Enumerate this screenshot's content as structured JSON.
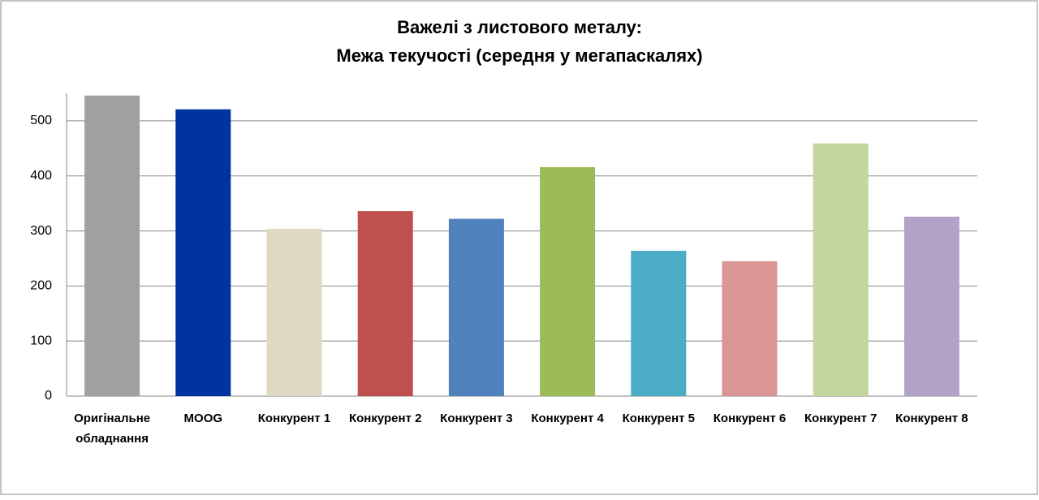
{
  "chart_data": {
    "type": "bar",
    "title": "Важелі з листового металу:",
    "subtitle": "Межа текучості (середня у мегапаскалях)",
    "categories": [
      "Оригінальне обладнання",
      "MOOG",
      "Конкурент 1",
      "Конкурент 2",
      "Конкурент 3",
      "Конкурент 4",
      "Конкурент 5",
      "Конкурент 6",
      "Конкурент 7",
      "Конкурент 8"
    ],
    "values": [
      546,
      521,
      304,
      336,
      322,
      416,
      264,
      245,
      459,
      326
    ],
    "colors": [
      "#a0a0a0",
      "#0033a0",
      "#ddd9c3",
      "#c0504d",
      "#4f81bd",
      "#9bbb59",
      "#4bacc6",
      "#d99694",
      "#c3d69b",
      "#b2a2c7"
    ],
    "ylim": [
      0,
      550
    ],
    "yticks": [
      0,
      100,
      200,
      300,
      400,
      500
    ],
    "grid": true
  }
}
